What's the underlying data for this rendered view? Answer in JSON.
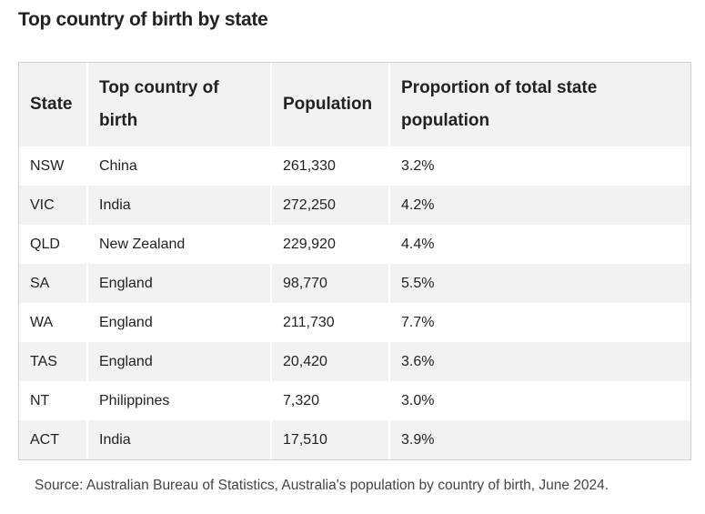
{
  "title": "Top country of birth by state",
  "table": {
    "headers": [
      "State",
      "Top country of birth",
      "Population",
      "Proportion of total state population"
    ],
    "rows": [
      [
        "NSW",
        "China",
        "261,330",
        "3.2%"
      ],
      [
        "VIC",
        "India",
        "272,250",
        "4.2%"
      ],
      [
        "QLD",
        "New Zealand",
        "229,920",
        "4.4%"
      ],
      [
        "SA",
        "England",
        "98,770",
        "5.5%"
      ],
      [
        "WA",
        "England",
        "211,730",
        "7.7%"
      ],
      [
        "TAS",
        "England",
        "20,420",
        "3.6%"
      ],
      [
        "NT",
        "Philippines",
        "7,320",
        "3.0%"
      ],
      [
        "ACT",
        "India",
        "17,510",
        "3.9%"
      ]
    ]
  },
  "source": "Source: Australian Bureau of Statistics, Australia's population by country of birth, June 2024."
}
